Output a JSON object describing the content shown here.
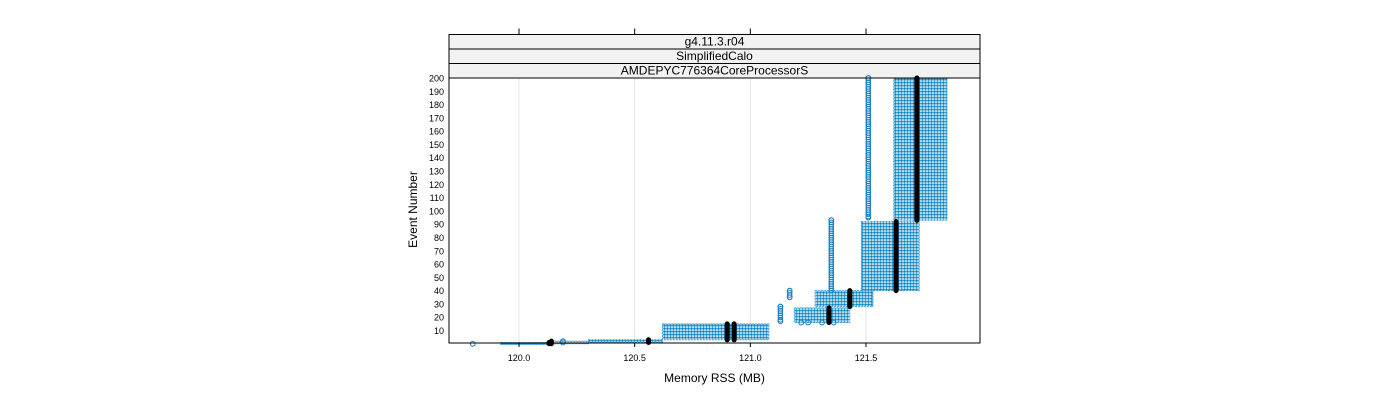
{
  "chart_data": {
    "type": "box-violin",
    "strips": [
      "g4.11.3.r04",
      "SimplifiedCalo",
      "AMDEPYC776364CoreProcessorS"
    ],
    "xlabel": "Memory RSS (MB)",
    "ylabel": "Event Number",
    "xlim": [
      119.7,
      121.97
    ],
    "ylim": [
      0,
      200
    ],
    "x_ticks": [
      120.0,
      120.5,
      121.0,
      121.5
    ],
    "x_tick_labels": [
      "120.0",
      "120.5",
      "121.0",
      "121.5"
    ],
    "x_top_ticks": [
      120.0,
      120.5,
      121.0,
      121.5
    ],
    "y_ticks": [
      10,
      20,
      30,
      40,
      50,
      60,
      70,
      80,
      90,
      100,
      110,
      120,
      130,
      140,
      150,
      160,
      170,
      180,
      190,
      200
    ],
    "grid": "vertical",
    "color": "#0080c0",
    "groups": [
      {
        "xmin": 119.92,
        "xmax": 120.14,
        "ymin": 0,
        "ymax": 1,
        "median_x": 120.13
      },
      {
        "xmin": 120.14,
        "xmax": 120.3,
        "ymin": 0,
        "ymax": 2,
        "median_x": 120.14
      },
      {
        "xmin": 120.3,
        "xmax": 120.62,
        "ymin": 1,
        "ymax": 3,
        "median_x": 120.56
      },
      {
        "xmin": 120.62,
        "xmax": 120.93,
        "ymin": 3,
        "ymax": 15,
        "median_x": 120.9
      },
      {
        "xmin": 120.93,
        "xmax": 121.08,
        "ymin": 3,
        "ymax": 15,
        "median_x": 120.93
      },
      {
        "xmin": 121.19,
        "xmax": 121.43,
        "ymin": 16,
        "ymax": 27,
        "median_x": 121.34
      },
      {
        "xmin": 121.28,
        "xmax": 121.53,
        "ymin": 28,
        "ymax": 40,
        "median_x": 121.43
      },
      {
        "xmin": 121.48,
        "xmax": 121.73,
        "ymin": 40,
        "ymax": 92,
        "median_x": 121.63
      },
      {
        "xmin": 121.62,
        "xmax": 121.85,
        "ymin": 93,
        "ymax": 200,
        "median_x": 121.72
      }
    ],
    "outliers": [
      {
        "x": 119.8,
        "y": 0
      },
      {
        "x": 120.19,
        "y": 2
      },
      {
        "x": 120.19,
        "y": 1
      },
      {
        "x": 121.13,
        "y": 17
      },
      {
        "x": 121.13,
        "y": 28
      },
      {
        "x": 121.17,
        "y": 35
      },
      {
        "x": 121.17,
        "y": 40
      },
      {
        "x": 121.22,
        "y": 16
      },
      {
        "x": 121.25,
        "y": 16
      },
      {
        "x": 121.31,
        "y": 16
      },
      {
        "x": 121.36,
        "y": 16
      },
      {
        "x": 121.35,
        "y": 40
      },
      {
        "x": 121.35,
        "y": 93
      },
      {
        "x": 121.51,
        "y": 95
      },
      {
        "x": 121.51,
        "y": 200
      }
    ],
    "outlier_columns": [
      {
        "x": 121.13,
        "ymin": 17,
        "ymax": 28
      },
      {
        "x": 121.17,
        "ymin": 35,
        "ymax": 40
      },
      {
        "x": 121.35,
        "ymin": 40,
        "ymax": 93
      },
      {
        "x": 121.51,
        "ymin": 95,
        "ymax": 200
      }
    ]
  }
}
